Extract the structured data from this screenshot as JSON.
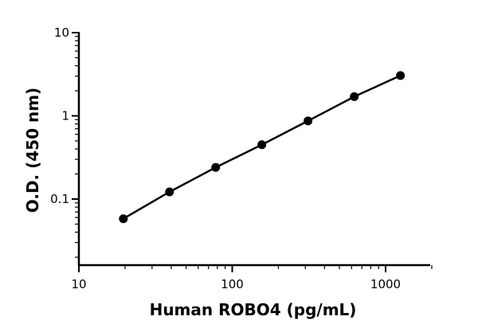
{
  "chart_data": {
    "type": "line",
    "title": "",
    "xlabel": "Human ROBO4 (pg/mL)",
    "ylabel": "O.D. (450 nm)",
    "xscale": "log",
    "yscale": "log",
    "xlim": [
      10,
      2000
    ],
    "ylim": [
      0.015,
      10
    ],
    "xticks": [
      10,
      100,
      1000
    ],
    "xtick_labels": [
      "10",
      "100",
      "1000"
    ],
    "yticks": [
      0.1,
      1,
      10
    ],
    "ytick_labels": [
      "0.1",
      "1",
      "10"
    ],
    "grid": false,
    "legend": "none",
    "series": [
      {
        "x": [
          19.5,
          39,
          78,
          156,
          312,
          625,
          1250
        ],
        "y": [
          0.058,
          0.122,
          0.24,
          0.45,
          0.87,
          1.7,
          3.05
        ],
        "marker": "circle",
        "color": "#000000"
      }
    ]
  }
}
